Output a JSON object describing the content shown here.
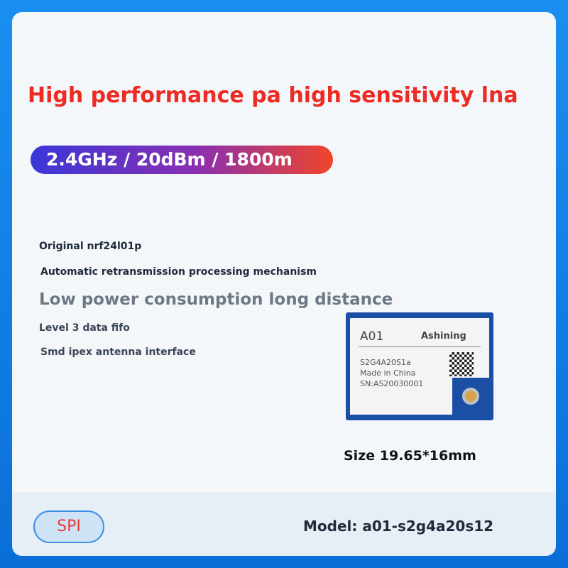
{
  "headline": "High performance pa high sensitivity lna",
  "specs": "2.4GHz / 20dBm / 1800m",
  "features": [
    "Original nrf24l01p",
    "Automatic retransmission processing mechanism",
    "Low power consumption long distance",
    "Level 3 data fifo",
    "Smd ipex antenna interface"
  ],
  "module": {
    "name": "A01",
    "brand": "Ashining",
    "part": "S2G4A20S1a",
    "origin": "Made in China",
    "sn": "SN:AS20030001"
  },
  "size": "Size 19.65*16mm",
  "interface": "SPI",
  "model": "Model: a01-s2g4a20s12",
  "colors": {
    "headline": "#ee2a24",
    "frame": "#1a8ff0",
    "module": "#1b4fa6"
  }
}
